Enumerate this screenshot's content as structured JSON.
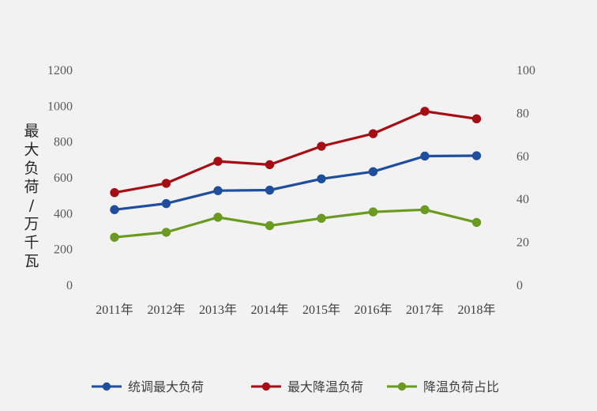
{
  "chart_data": {
    "type": "line",
    "title": "",
    "categories": [
      "2011年",
      "2012年",
      "2013年",
      "2014年",
      "2015年",
      "2016年",
      "2017年",
      "2018年"
    ],
    "ylabel_left": "最大负荷/万千瓦",
    "ylim_left": [
      0,
      1200
    ],
    "yticks_left": [
      "0",
      "200",
      "400",
      "600",
      "800",
      "1000",
      "1200"
    ],
    "ylim_right": [
      0,
      100
    ],
    "yticks_right": [
      "0",
      "20",
      "40",
      "60",
      "80",
      "100"
    ],
    "grid": false,
    "legend_position": "bottom",
    "series": [
      {
        "name": "统调最大负荷",
        "axis": "left",
        "color": "#1f4e9c",
        "values": [
          418,
          452,
          524,
          527,
          590,
          630,
          717,
          719
        ]
      },
      {
        "name": "最大降温负荷",
        "axis": "left",
        "color": "#a40e14",
        "values": [
          513,
          565,
          688,
          669,
          772,
          842,
          967,
          925
        ]
      },
      {
        "name": "降温负荷占比",
        "axis": "right",
        "color": "#6b9a20",
        "values": [
          22,
          24.3,
          31.3,
          27.4,
          30.8,
          33.8,
          34.8,
          28.9
        ]
      }
    ]
  }
}
